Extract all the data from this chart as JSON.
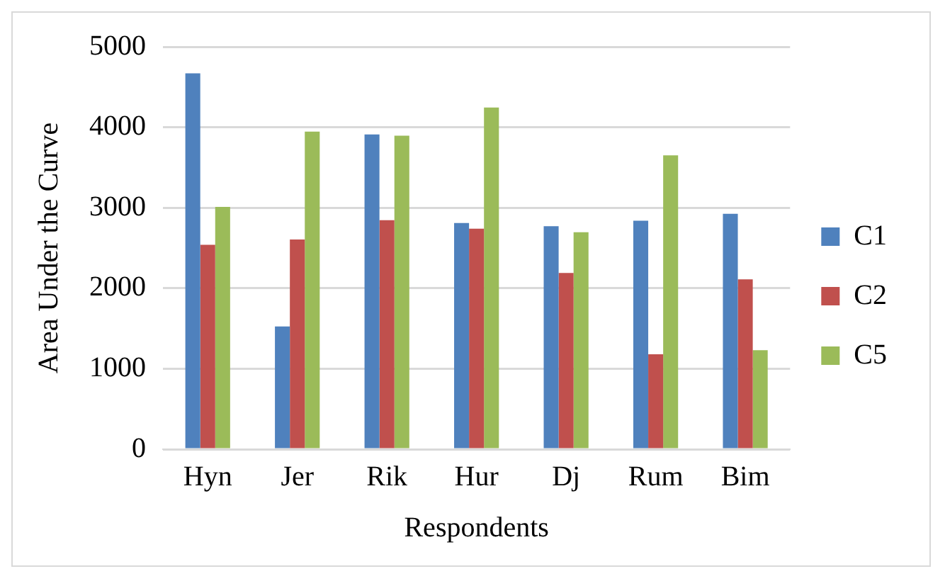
{
  "chart_data": {
    "type": "bar",
    "xlabel": "Respondents",
    "ylabel": "Area Under the Curve",
    "categories": [
      "Hyn",
      "Jer",
      "Rik",
      "Hur",
      "Dj",
      "Rum",
      "Bim"
    ],
    "series": [
      {
        "name": "C1",
        "color": "#4f81bd",
        "values": [
          4670,
          1525,
          3910,
          2810,
          2770,
          2840,
          2925
        ]
      },
      {
        "name": "C2",
        "color": "#c0504d",
        "values": [
          2540,
          2605,
          2845,
          2740,
          2190,
          1180,
          2110
        ]
      },
      {
        "name": "C5",
        "color": "#9bbb59",
        "values": [
          3010,
          3945,
          3895,
          4245,
          2695,
          3650,
          1230
        ]
      }
    ],
    "ylim": [
      0,
      5000
    ],
    "yticks": [
      0,
      1000,
      2000,
      3000,
      4000,
      5000
    ],
    "grid": "y",
    "legend": "right"
  }
}
